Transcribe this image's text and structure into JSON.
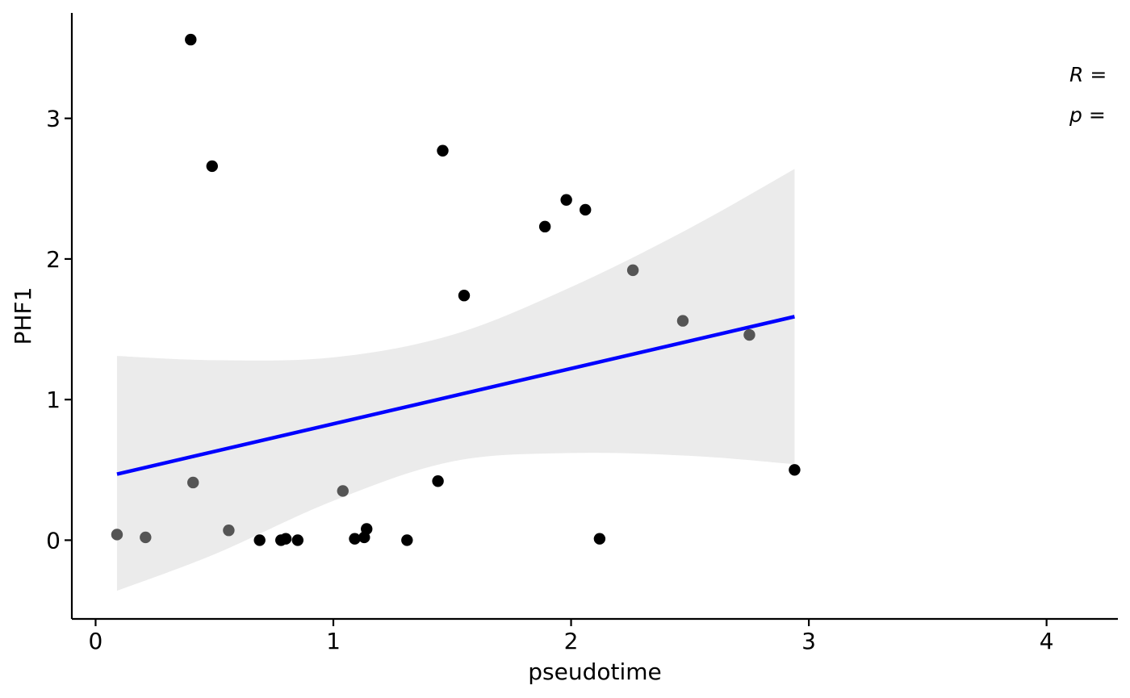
{
  "chart_data": {
    "type": "scatter",
    "xlabel": "pseudotime",
    "ylabel": "PHF1",
    "xlim": [
      -0.1,
      4.3
    ],
    "ylim": [
      -0.56,
      3.75
    ],
    "x_ticks": [
      0,
      1,
      2,
      3,
      4
    ],
    "y_ticks": [
      0,
      1,
      2,
      3
    ],
    "x_tick_labels": [
      "0",
      "1",
      "2",
      "3",
      "4"
    ],
    "y_tick_labels": [
      "0",
      "1",
      "2",
      "3"
    ],
    "grid": false,
    "points": [
      {
        "x": 0.4,
        "y": 3.56,
        "shade": "#000000"
      },
      {
        "x": 0.49,
        "y": 2.66,
        "shade": "#000000"
      },
      {
        "x": 1.46,
        "y": 2.77,
        "shade": "#000000"
      },
      {
        "x": 1.98,
        "y": 2.42,
        "shade": "#000000"
      },
      {
        "x": 2.06,
        "y": 2.35,
        "shade": "#000000"
      },
      {
        "x": 1.89,
        "y": 2.23,
        "shade": "#000000"
      },
      {
        "x": 2.26,
        "y": 1.92,
        "shade": "#555555"
      },
      {
        "x": 1.55,
        "y": 1.74,
        "shade": "#000000"
      },
      {
        "x": 2.47,
        "y": 1.56,
        "shade": "#555555"
      },
      {
        "x": 2.75,
        "y": 1.46,
        "shade": "#555555"
      },
      {
        "x": 2.94,
        "y": 0.5,
        "shade": "#000000"
      },
      {
        "x": 0.41,
        "y": 0.41,
        "shade": "#555555"
      },
      {
        "x": 1.44,
        "y": 0.42,
        "shade": "#000000"
      },
      {
        "x": 1.04,
        "y": 0.35,
        "shade": "#555555"
      },
      {
        "x": 0.09,
        "y": 0.04,
        "shade": "#555555"
      },
      {
        "x": 0.21,
        "y": 0.02,
        "shade": "#555555"
      },
      {
        "x": 0.56,
        "y": 0.07,
        "shade": "#555555"
      },
      {
        "x": 0.69,
        "y": 0.0,
        "shade": "#000000"
      },
      {
        "x": 0.78,
        "y": 0.0,
        "shade": "#000000"
      },
      {
        "x": 0.8,
        "y": 0.01,
        "shade": "#000000"
      },
      {
        "x": 0.85,
        "y": 0.0,
        "shade": "#000000"
      },
      {
        "x": 1.09,
        "y": 0.01,
        "shade": "#000000"
      },
      {
        "x": 1.13,
        "y": 0.02,
        "shade": "#000000"
      },
      {
        "x": 1.14,
        "y": 0.08,
        "shade": "#000000"
      },
      {
        "x": 1.31,
        "y": 0.0,
        "shade": "#000000"
      },
      {
        "x": 2.12,
        "y": 0.01,
        "shade": "#000000"
      }
    ],
    "regression": {
      "color": "#0000ff",
      "x_start": 0.09,
      "y_start": 0.47,
      "x_end": 2.94,
      "y_end": 1.59
    },
    "confidence_band": {
      "color": "#ebebeb",
      "upper": [
        [
          0.09,
          1.31
        ],
        [
          0.5,
          1.28
        ],
        [
          1.0,
          1.3
        ],
        [
          1.5,
          1.46
        ],
        [
          2.0,
          1.8
        ],
        [
          2.5,
          2.22
        ],
        [
          2.94,
          2.64
        ]
      ],
      "lower": [
        [
          0.09,
          -0.36
        ],
        [
          0.5,
          -0.1
        ],
        [
          1.0,
          0.28
        ],
        [
          1.5,
          0.56
        ],
        [
          2.0,
          0.62
        ],
        [
          2.5,
          0.6
        ],
        [
          2.94,
          0.54
        ]
      ]
    },
    "annotations": [
      "R =",
      "p ="
    ]
  }
}
